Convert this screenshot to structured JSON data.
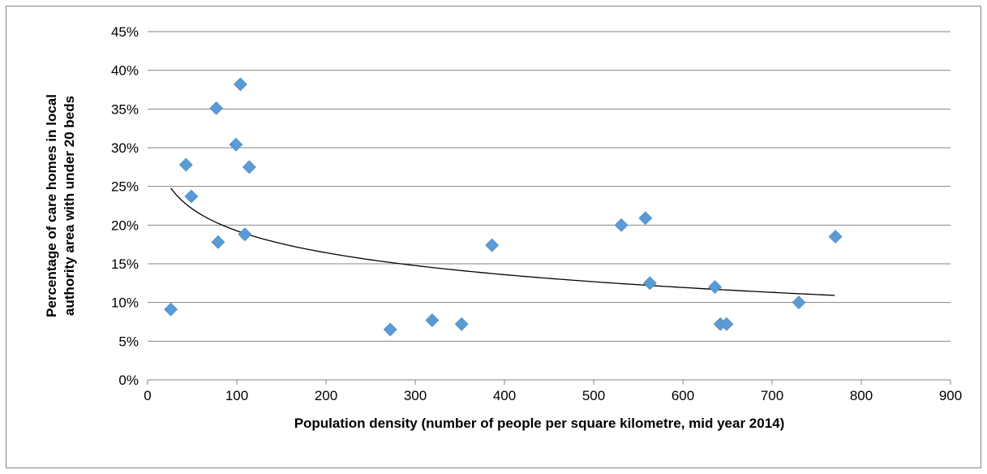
{
  "chart_data": {
    "type": "scatter",
    "title": "",
    "xlabel": "Population density (number of people per square kilometre, mid year 2014)",
    "ylabel_lines": [
      "Percentage of care homes in local",
      "authority area with under 20 beds"
    ],
    "xlim": [
      0,
      900
    ],
    "ylim": [
      0,
      45
    ],
    "x_ticks": [
      0,
      100,
      200,
      300,
      400,
      500,
      600,
      700,
      800,
      900
    ],
    "y_ticks": [
      0,
      5,
      10,
      15,
      20,
      25,
      30,
      35,
      40,
      45
    ],
    "x_tick_labels": [
      "0",
      "100",
      "200",
      "300",
      "400",
      "500",
      "600",
      "700",
      "800",
      "900"
    ],
    "y_tick_labels": [
      "0%",
      "5%",
      "10%",
      "15%",
      "20%",
      "25%",
      "30%",
      "35%",
      "40%",
      "45%"
    ],
    "grid": "horizontal",
    "legend": "none",
    "marker": "diamond",
    "marker_color": "#5B9BD5",
    "trendline": {
      "type": "logarithmic",
      "color": "#000000",
      "x_range": [
        26,
        770
      ],
      "equation_a": 38.1,
      "equation_b": -4.09
    },
    "points": [
      {
        "x": 26,
        "y": 9.1
      },
      {
        "x": 43,
        "y": 27.8
      },
      {
        "x": 49,
        "y": 23.7
      },
      {
        "x": 77,
        "y": 35.1
      },
      {
        "x": 79,
        "y": 17.8
      },
      {
        "x": 99,
        "y": 30.4
      },
      {
        "x": 104,
        "y": 38.2
      },
      {
        "x": 109,
        "y": 18.8
      },
      {
        "x": 114,
        "y": 27.5
      },
      {
        "x": 272,
        "y": 6.5
      },
      {
        "x": 319,
        "y": 7.7
      },
      {
        "x": 352,
        "y": 7.2
      },
      {
        "x": 386,
        "y": 17.4
      },
      {
        "x": 531,
        "y": 20.0
      },
      {
        "x": 558,
        "y": 20.9
      },
      {
        "x": 563,
        "y": 12.5
      },
      {
        "x": 636,
        "y": 12.0
      },
      {
        "x": 642,
        "y": 7.2
      },
      {
        "x": 649,
        "y": 7.2
      },
      {
        "x": 730,
        "y": 10.0
      },
      {
        "x": 771,
        "y": 18.5
      }
    ]
  }
}
